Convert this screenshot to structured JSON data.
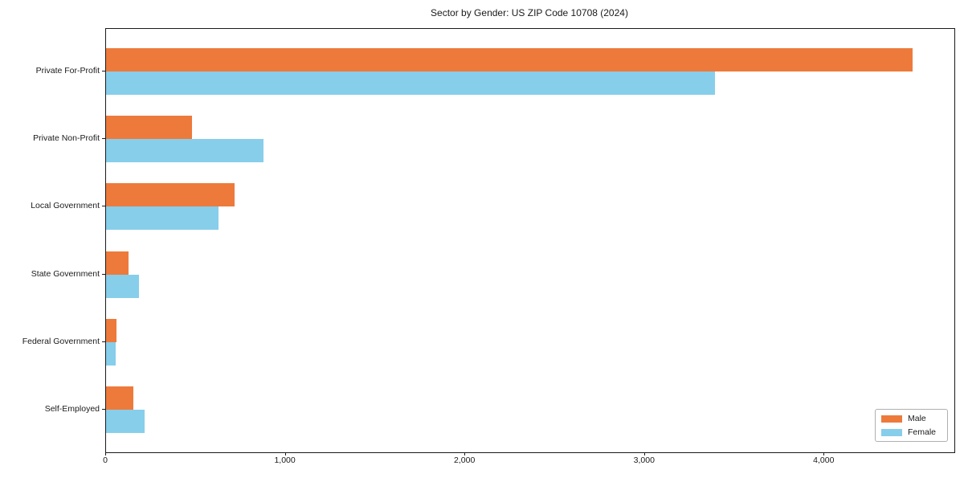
{
  "title": "Sector by Gender: US ZIP Code 10708 (2024)",
  "chart_data": {
    "type": "bar",
    "orientation": "horizontal",
    "title": "Sector by Gender: US ZIP Code 10708 (2024)",
    "categories": [
      "Private For-Profit",
      "Private Non-Profit",
      "Local Government",
      "State Government",
      "Federal Government",
      "Self-Employed"
    ],
    "series": [
      {
        "name": "Male",
        "color": "#ED7A3B",
        "values": [
          4490,
          480,
          715,
          125,
          60,
          152
        ]
      },
      {
        "name": "Female",
        "color": "#87CEEB",
        "values": [
          3390,
          875,
          625,
          185,
          55,
          215
        ]
      }
    ],
    "xlabel": "",
    "ylabel": "",
    "xlim": [
      0,
      4723
    ],
    "xticks": {
      "values": [
        0,
        1000,
        2000,
        3000,
        4000
      ],
      "labels": [
        "0",
        "1,000",
        "2,000",
        "3,000",
        "4,000"
      ]
    },
    "grid": false,
    "legend_position": "lower right"
  }
}
